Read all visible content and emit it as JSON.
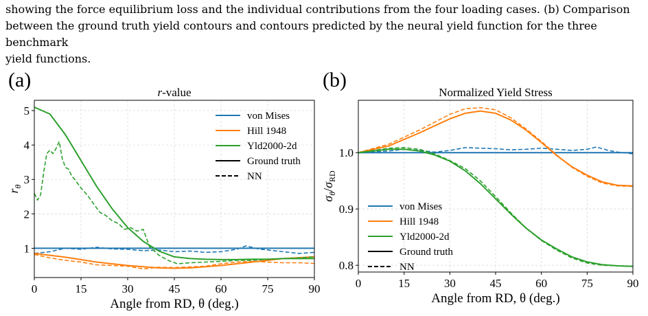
{
  "caption": {
    "lines": [
      "showing the force equilibrium loss and the individual contributions from the four loading cases.  (b) Comparison",
      "between the ground truth yield contours and contours predicted by the neural yield function for the three benchmark",
      "yield functions."
    ]
  },
  "panels": {
    "a_label": "(a)",
    "b_label": "(b)"
  },
  "colors": {
    "von_mises": "#1f77b4",
    "hill": "#ff7f0e",
    "yld": "#2ca02c",
    "grid": "#d9d9d9"
  },
  "chart_data": [
    {
      "type": "line",
      "title": "r-value",
      "xlabel": "Angle from RD, θ (deg.)",
      "ylabel": "rθ",
      "xlim": [
        0,
        90
      ],
      "ylim": [
        0.15,
        5.3
      ],
      "xticks": [
        0,
        15,
        30,
        45,
        60,
        75,
        90
      ],
      "yticks": [
        1,
        2,
        3,
        4,
        5
      ],
      "grid": true,
      "legend_position": "top-right",
      "legend": [
        "von Mises",
        "Hill 1948",
        "Yld2000-2d",
        "Ground truth",
        "NN"
      ],
      "series": [
        {
          "name": "von Mises",
          "style": "solid",
          "color": "#1f77b4",
          "x": [
            0,
            90
          ],
          "y": [
            1.0,
            1.0
          ]
        },
        {
          "name": "von Mises",
          "style": "dashed",
          "color": "#1f77b4",
          "x": [
            0,
            5,
            10,
            15,
            20,
            25,
            30,
            35,
            40,
            45,
            50,
            55,
            60,
            65,
            68,
            72,
            75,
            80,
            85,
            90
          ],
          "y": [
            0.85,
            0.9,
            1.0,
            0.97,
            1.03,
            0.98,
            0.97,
            0.93,
            0.95,
            0.9,
            0.92,
            0.88,
            0.9,
            0.97,
            1.07,
            0.98,
            0.95,
            0.9,
            0.85,
            0.88
          ]
        },
        {
          "name": "Hill 1948",
          "style": "solid",
          "color": "#ff7f0e",
          "x": [
            0,
            10,
            20,
            30,
            40,
            45,
            50,
            60,
            70,
            80,
            90
          ],
          "y": [
            0.85,
            0.74,
            0.6,
            0.5,
            0.43,
            0.42,
            0.43,
            0.5,
            0.6,
            0.7,
            0.75
          ]
        },
        {
          "name": "Hill 1948",
          "style": "dashed",
          "color": "#ff7f0e",
          "x": [
            0,
            5,
            10,
            15,
            20,
            25,
            30,
            35,
            40,
            45,
            50,
            55,
            60,
            65,
            70,
            75,
            80,
            85,
            90
          ],
          "y": [
            0.82,
            0.72,
            0.65,
            0.6,
            0.52,
            0.5,
            0.48,
            0.4,
            0.45,
            0.44,
            0.46,
            0.48,
            0.55,
            0.6,
            0.62,
            0.6,
            0.58,
            0.58,
            0.56
          ]
        },
        {
          "name": "Yld2000-2d",
          "style": "solid",
          "color": "#2ca02c",
          "x": [
            0,
            5,
            10,
            15,
            20,
            25,
            30,
            35,
            40,
            45,
            50,
            55,
            60,
            65,
            70,
            75,
            80,
            85,
            90
          ],
          "y": [
            5.1,
            4.9,
            4.3,
            3.55,
            2.8,
            2.15,
            1.6,
            1.2,
            0.92,
            0.75,
            0.7,
            0.68,
            0.67,
            0.67,
            0.68,
            0.68,
            0.7,
            0.7,
            0.7
          ]
        },
        {
          "name": "Yld2000-2d",
          "style": "dashed",
          "color": "#2ca02c",
          "x": [
            0,
            1,
            2,
            3,
            4,
            5,
            6,
            7,
            8,
            9,
            10,
            11,
            12,
            13,
            15,
            17,
            19,
            21,
            23,
            25,
            27,
            29,
            31,
            33,
            35,
            37,
            40,
            43,
            46,
            50,
            55,
            60,
            65,
            70,
            75,
            80,
            85,
            90
          ],
          "y": [
            2.6,
            2.4,
            2.55,
            3.2,
            3.75,
            3.85,
            3.75,
            3.9,
            4.1,
            3.6,
            3.35,
            3.3,
            3.1,
            3.0,
            2.75,
            2.55,
            2.3,
            2.05,
            1.95,
            1.8,
            1.72,
            1.55,
            1.6,
            1.5,
            1.55,
            1.05,
            0.8,
            0.65,
            0.55,
            0.58,
            0.6,
            0.62,
            0.65,
            0.65,
            0.68,
            0.7,
            0.72,
            0.75
          ]
        }
      ]
    },
    {
      "type": "line",
      "title": "Normalized Yield Stress",
      "xlabel": "Angle from RD, θ (deg.)",
      "ylabel": "σθ/σRD",
      "xlim": [
        0,
        90
      ],
      "ylim": [
        0.788,
        1.093
      ],
      "xticks": [
        0,
        15,
        30,
        45,
        60,
        75,
        90
      ],
      "yticks": [
        0.8,
        0.9,
        1.0
      ],
      "grid": true,
      "legend_position": "lower-left",
      "legend": [
        "von Mises",
        "Hill 1948",
        "Yld2000-2d",
        "Ground truth",
        "NN"
      ],
      "series": [
        {
          "name": "von Mises",
          "style": "solid",
          "color": "#1f77b4",
          "x": [
            0,
            90
          ],
          "y": [
            1.0,
            1.0
          ]
        },
        {
          "name": "von Mises",
          "style": "dashed",
          "color": "#1f77b4",
          "x": [
            0,
            10,
            15,
            20,
            25,
            30,
            35,
            40,
            45,
            50,
            55,
            60,
            65,
            70,
            75,
            78,
            82,
            85,
            90
          ],
          "y": [
            1.0,
            1.003,
            1.006,
            1.004,
            1.001,
            1.004,
            1.009,
            1.008,
            1.007,
            1.005,
            1.006,
            1.008,
            1.006,
            1.004,
            1.006,
            1.01,
            1.004,
            1.001,
            0.998
          ]
        },
        {
          "name": "Hill 1948",
          "style": "solid",
          "color": "#ff7f0e",
          "x": [
            0,
            10,
            20,
            30,
            35,
            40,
            45,
            50,
            55,
            60,
            65,
            70,
            75,
            80,
            85,
            90
          ],
          "y": [
            1.0,
            1.012,
            1.035,
            1.06,
            1.07,
            1.074,
            1.07,
            1.058,
            1.04,
            1.018,
            0.995,
            0.975,
            0.96,
            0.948,
            0.942,
            0.941
          ]
        },
        {
          "name": "Hill 1948",
          "style": "dashed",
          "color": "#ff7f0e",
          "x": [
            0,
            10,
            20,
            30,
            35,
            40,
            45,
            50,
            55,
            60,
            65,
            70,
            75,
            80,
            85,
            90
          ],
          "y": [
            1.0,
            1.015,
            1.04,
            1.068,
            1.078,
            1.08,
            1.076,
            1.062,
            1.042,
            1.02,
            0.996,
            0.974,
            0.958,
            0.946,
            0.941,
            0.94
          ]
        },
        {
          "name": "Yld2000-2d",
          "style": "solid",
          "color": "#2ca02c",
          "x": [
            0,
            10,
            15,
            20,
            25,
            30,
            35,
            40,
            45,
            50,
            55,
            60,
            65,
            70,
            75,
            80,
            85,
            90
          ],
          "y": [
            1.0,
            1.006,
            1.006,
            1.003,
            0.996,
            0.985,
            0.968,
            0.945,
            0.918,
            0.891,
            0.866,
            0.845,
            0.829,
            0.815,
            0.806,
            0.801,
            0.799,
            0.798
          ]
        },
        {
          "name": "Yld2000-2d",
          "style": "dashed",
          "color": "#2ca02c",
          "x": [
            0,
            10,
            15,
            20,
            25,
            30,
            35,
            40,
            45,
            50,
            55,
            60,
            65,
            70,
            75,
            80,
            85,
            90
          ],
          "y": [
            1.0,
            1.008,
            1.009,
            1.006,
            0.998,
            0.986,
            0.972,
            0.95,
            0.922,
            0.893,
            0.866,
            0.844,
            0.827,
            0.813,
            0.804,
            0.8,
            0.799,
            0.798
          ]
        }
      ]
    }
  ]
}
